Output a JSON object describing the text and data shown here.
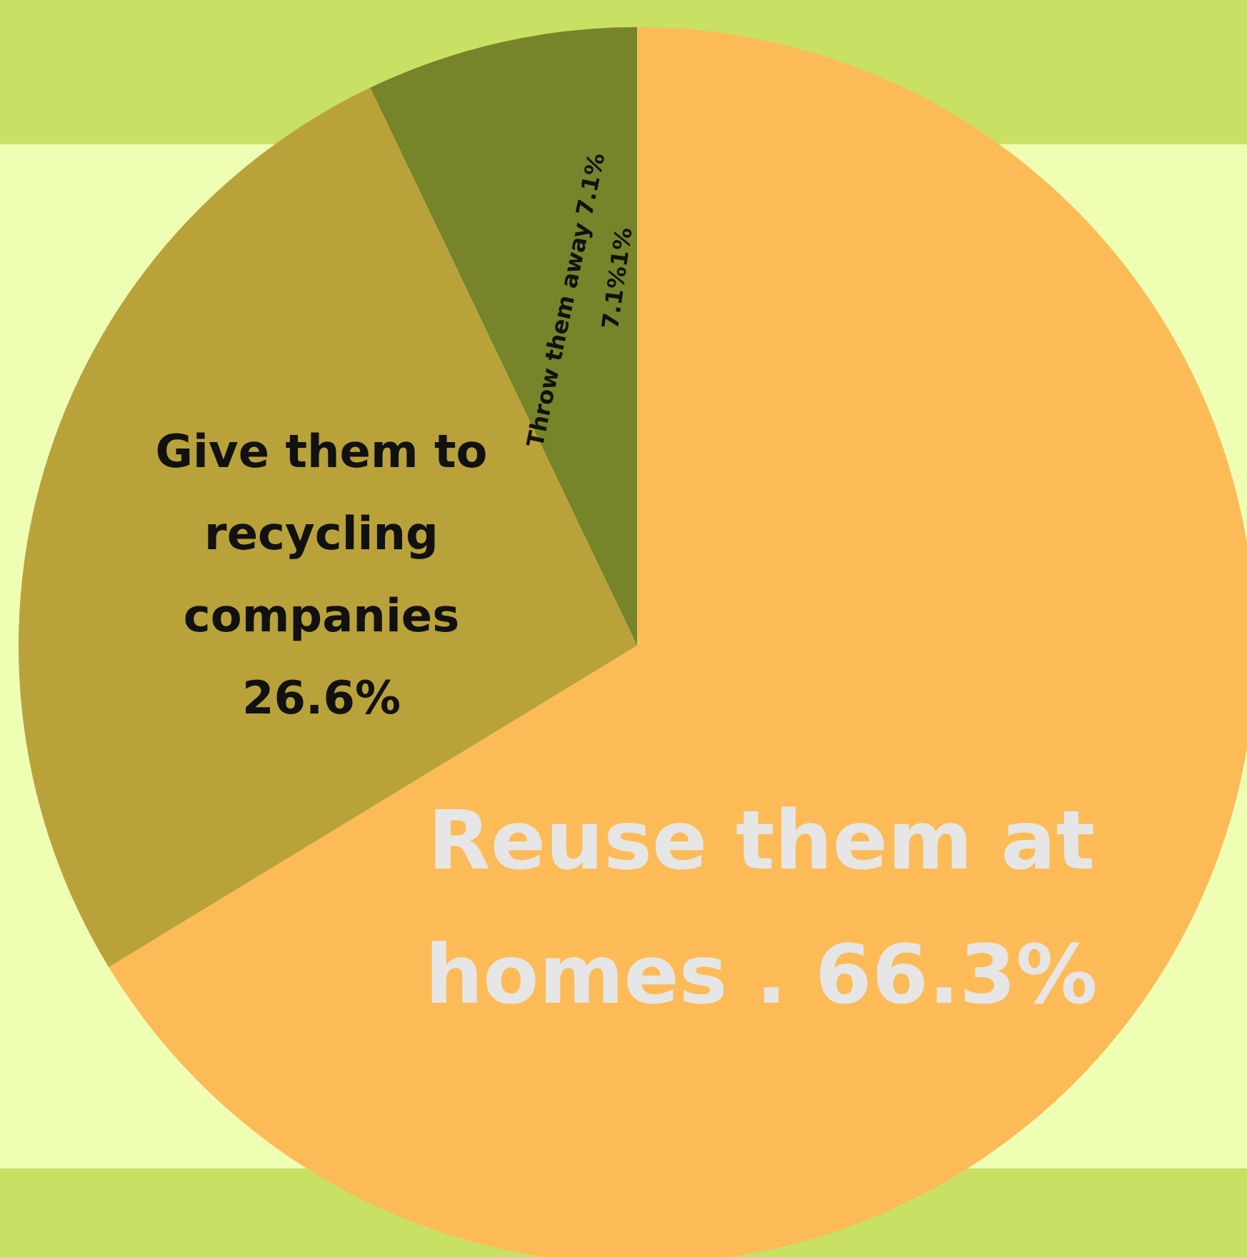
{
  "chart_data": {
    "type": "pie",
    "categories": [
      "Reuse them at homes .",
      "Give them to recycling companies",
      "Throw them away"
    ],
    "values": [
      66.3,
      26.6,
      7.1
    ],
    "value_labels": [
      "66.3%",
      "26.6%",
      "7.1%"
    ],
    "colors": [
      "#fdbb58",
      "#b9a23a",
      "#77842a"
    ],
    "annotations": [
      "7.1%1%"
    ]
  }
}
